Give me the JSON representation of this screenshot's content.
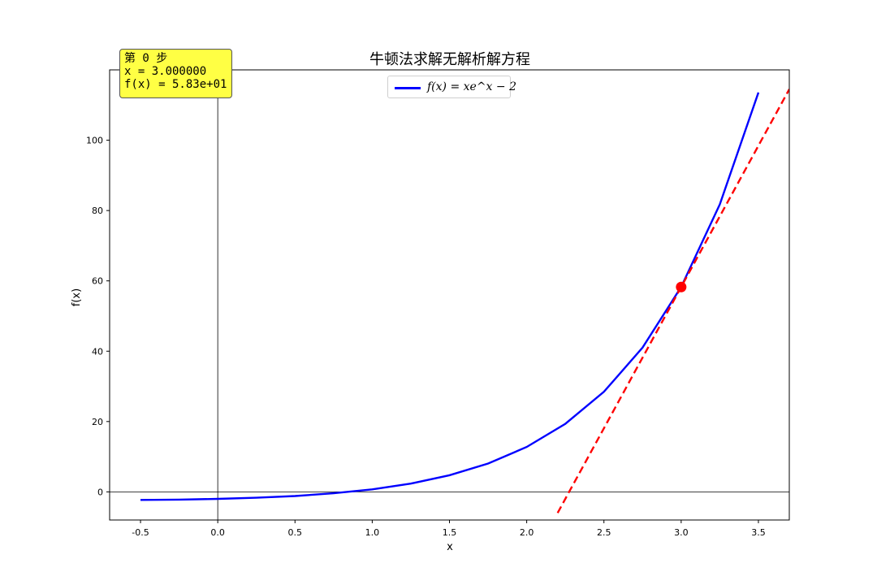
{
  "chart_data": {
    "type": "line",
    "title": "牛顿法求解无解析解方程",
    "xlabel": "x",
    "ylabel": "f(x)",
    "xlim": [
      -0.7,
      3.7
    ],
    "ylim": [
      -8,
      120
    ],
    "x_ticks": [
      "-0.5",
      "0.0",
      "0.5",
      "1.0",
      "1.5",
      "2.0",
      "2.5",
      "3.0",
      "3.5"
    ],
    "x_tick_values": [
      -0.5,
      0.0,
      0.5,
      1.0,
      1.5,
      2.0,
      2.5,
      3.0,
      3.5
    ],
    "y_ticks": [
      "0",
      "20",
      "40",
      "60",
      "80",
      "100"
    ],
    "y_tick_values": [
      0,
      20,
      40,
      60,
      80,
      100
    ],
    "grid": false,
    "legend_position": "top-center",
    "series": [
      {
        "name": "f(x) = xe^x − 2",
        "color": "#0000ff",
        "style": "solid",
        "x": [
          -0.5,
          -0.25,
          0.0,
          0.25,
          0.5,
          0.75,
          1.0,
          1.25,
          1.5,
          1.75,
          2.0,
          2.25,
          2.5,
          2.75,
          3.0,
          3.25,
          3.5
        ],
        "y": [
          -2.3,
          -2.19,
          -2.0,
          -1.68,
          -1.18,
          -0.41,
          0.72,
          2.36,
          4.72,
          8.05,
          12.78,
          19.35,
          28.46,
          41.02,
          58.26,
          81.74,
          113.58
        ]
      },
      {
        "name": "",
        "color": "#ff0000",
        "style": "dashed",
        "x": [
          2.2,
          3.7
        ],
        "y": [
          -6.0,
          114.5
        ]
      }
    ],
    "highlight_point": {
      "x": 3.0,
      "y": 58.26,
      "color": "#ff0000"
    },
    "reference_lines": {
      "y_zero": true,
      "x_zero": true
    }
  },
  "info_box": {
    "line1": "第 0 步",
    "line2": "x = 3.000000",
    "line3": "f(x) = 5.83e+01",
    "background": "#ffff44"
  }
}
